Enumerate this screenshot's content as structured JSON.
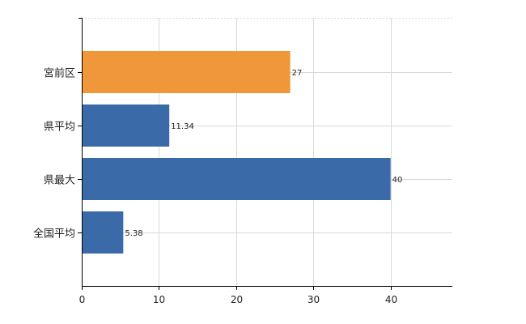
{
  "chart_data": {
    "type": "bar",
    "orientation": "horizontal",
    "categories": [
      "宮前区",
      "県平均",
      "県最大",
      "全国平均"
    ],
    "values": [
      27,
      11.34,
      40,
      5.38
    ],
    "value_labels": [
      "27",
      "11.34",
      "40",
      "5.38"
    ],
    "bar_colors": [
      "#f0963b",
      "#3a6aa8",
      "#3a6aa8",
      "#3a6aa8"
    ],
    "title": "",
    "xlabel": "",
    "ylabel": "",
    "xlim": [
      0,
      48
    ],
    "xticks": [
      0,
      10,
      20,
      30,
      40
    ],
    "xtick_labels": [
      "0",
      "10",
      "20",
      "30",
      "40"
    ],
    "grid": true,
    "legend": "none"
  }
}
